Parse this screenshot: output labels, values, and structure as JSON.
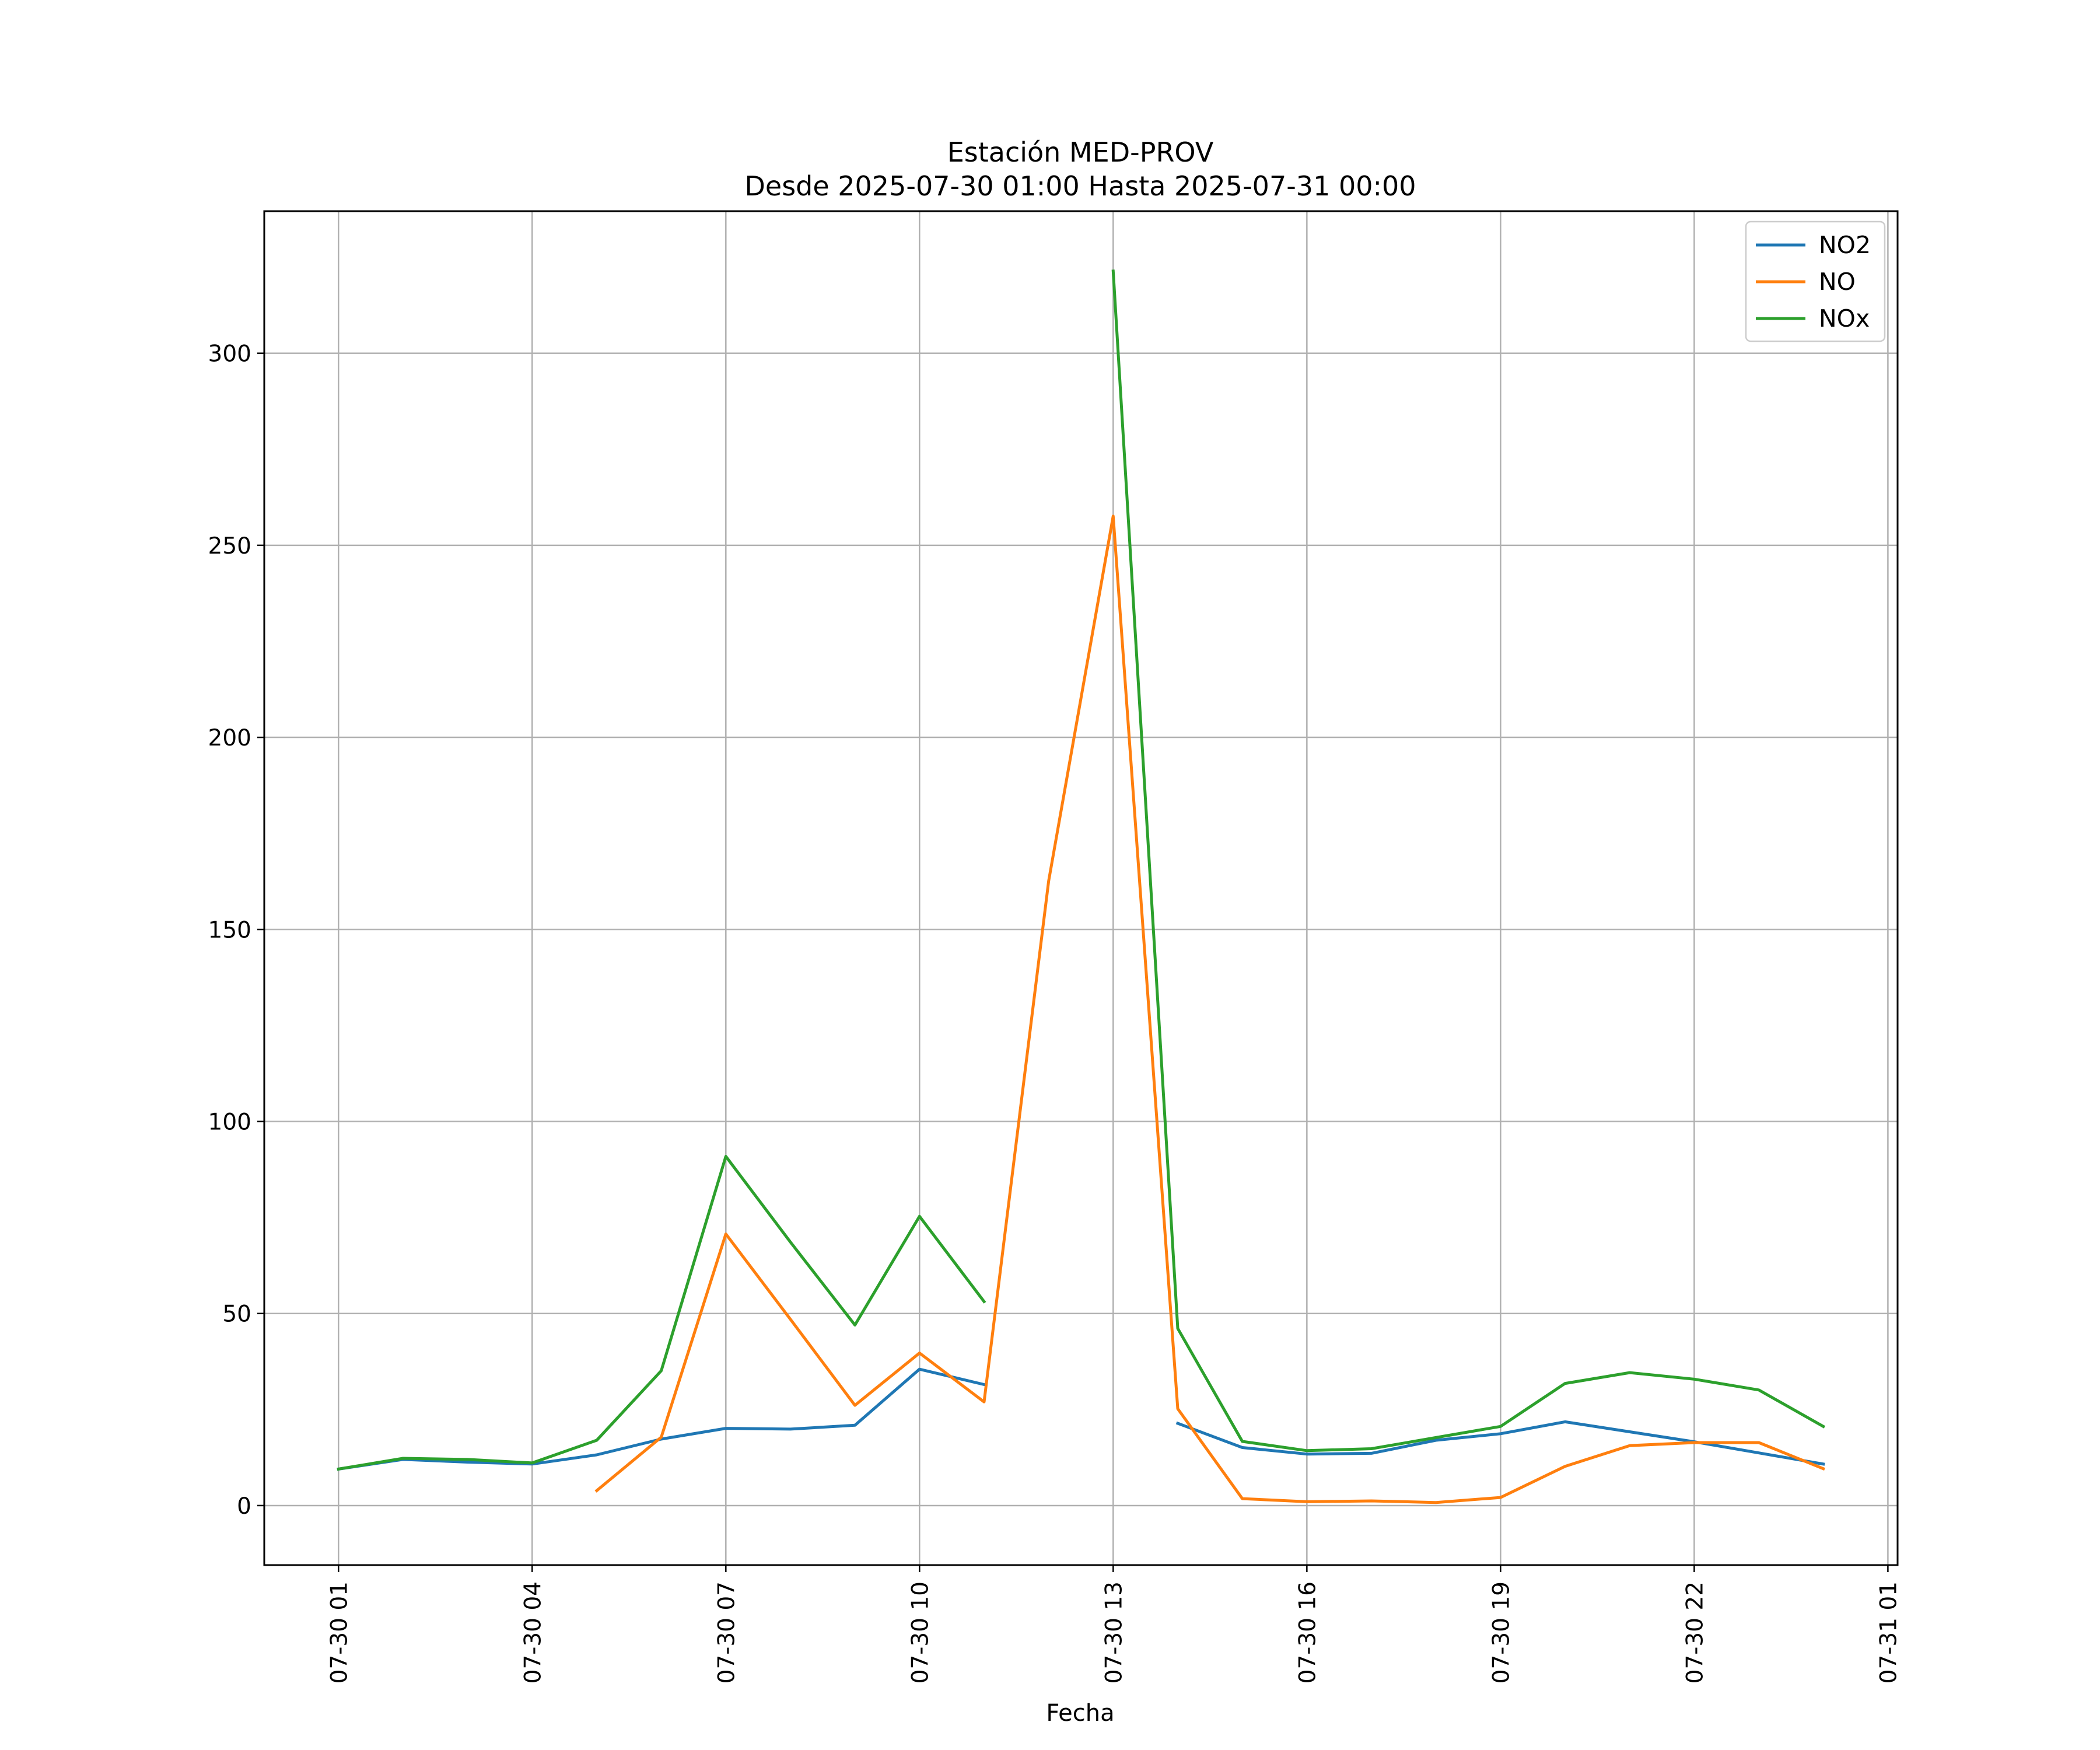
{
  "chart_data": {
    "type": "line",
    "title_lines": [
      "Estación MED-PROV",
      "Desde 2025-07-30 01:00 Hasta 2025-07-31 00:00"
    ],
    "xlabel": "Fecha",
    "ylabel": "",
    "x": [
      "2025-07-30 01:00",
      "2025-07-30 02:00",
      "2025-07-30 03:00",
      "2025-07-30 04:00",
      "2025-07-30 05:00",
      "2025-07-30 06:00",
      "2025-07-30 07:00",
      "2025-07-30 08:00",
      "2025-07-30 09:00",
      "2025-07-30 10:00",
      "2025-07-30 11:00",
      "2025-07-30 12:00",
      "2025-07-30 13:00",
      "2025-07-30 14:00",
      "2025-07-30 15:00",
      "2025-07-30 16:00",
      "2025-07-30 17:00",
      "2025-07-30 18:00",
      "2025-07-30 19:00",
      "2025-07-30 20:00",
      "2025-07-30 21:00",
      "2025-07-30 22:00",
      "2025-07-30 23:00",
      "2025-07-31 00:00"
    ],
    "x_ticks": [
      "2025-07-30 01:00",
      "2025-07-30 04:00",
      "2025-07-30 07:00",
      "2025-07-30 10:00",
      "2025-07-30 13:00",
      "2025-07-30 16:00",
      "2025-07-30 19:00",
      "2025-07-30 22:00",
      "2025-07-31 01:00"
    ],
    "x_tick_labels": [
      "07-30 01",
      "07-30 04",
      "07-30 07",
      "07-30 10",
      "07-30 13",
      "07-30 16",
      "07-30 19",
      "07-30 22",
      "07-31 01"
    ],
    "xlim": [
      "2025-07-29 23:51",
      "2025-07-31 01:09"
    ],
    "y_ticks": [
      0,
      50,
      100,
      150,
      200,
      250,
      300
    ],
    "ylim": [
      -15.5,
      337
    ],
    "grid": true,
    "legend_position": "top-right",
    "series": [
      {
        "name": "NO2",
        "color": "#1f77b4",
        "values": [
          9.5,
          12.0,
          11.3,
          10.8,
          13.2,
          17.3,
          20.1,
          19.9,
          20.9,
          35.5,
          31.5,
          null,
          null,
          21.4,
          15.1,
          13.4,
          13.6,
          17.0,
          18.7,
          21.8,
          19.2,
          16.6,
          13.7,
          10.8
        ]
      },
      {
        "name": "NO",
        "color": "#ff7f0e",
        "values": [
          null,
          null,
          null,
          null,
          3.9,
          17.8,
          70.7,
          48.5,
          26.1,
          39.7,
          27.0,
          162.6,
          257.6,
          25.2,
          1.8,
          1.0,
          1.2,
          0.8,
          2.1,
          10.2,
          15.6,
          16.4,
          16.4,
          9.6
        ]
      },
      {
        "name": "NOx",
        "color": "#2ca02c",
        "values": [
          9.5,
          12.3,
          12.0,
          11.1,
          17.0,
          35.1,
          90.9,
          68.6,
          47.0,
          75.3,
          53.1,
          null,
          321.4,
          46.1,
          16.7,
          14.3,
          14.8,
          17.7,
          20.6,
          31.8,
          34.6,
          32.9,
          30.1,
          20.6
        ]
      }
    ]
  }
}
